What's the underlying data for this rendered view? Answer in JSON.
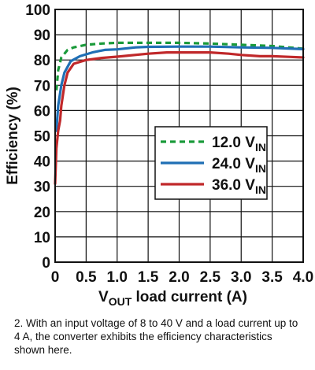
{
  "chart_data": {
    "type": "line",
    "ylabel": "Efficiency (%)",
    "xlabel": "V",
    "xlabel_sub": "OUT",
    "xlabel_rest": " load current (A)",
    "xlim": [
      0,
      4.0
    ],
    "ylim": [
      0,
      100
    ],
    "x_ticks": [
      "0",
      "0.5",
      "1.0",
      "1.5",
      "2.0",
      "2.5",
      "3.0",
      "3.5",
      "4.0"
    ],
    "y_ticks": [
      "0",
      "10",
      "20",
      "30",
      "40",
      "50",
      "60",
      "70",
      "80",
      "90",
      "100"
    ],
    "grid": true,
    "legend_position": "center-right",
    "series": [
      {
        "name": "12.0 V",
        "name_sub": "IN",
        "color": "#1a9a3a",
        "dash": true,
        "x": [
          0.02,
          0.05,
          0.1,
          0.2,
          0.3,
          0.5,
          0.75,
          1.0,
          1.5,
          2.0,
          2.5,
          3.0,
          3.5,
          4.0
        ],
        "y": [
          68,
          76,
          81,
          84,
          85,
          86,
          86.5,
          86.8,
          86.8,
          86.8,
          86.5,
          86,
          85.5,
          84.5
        ]
      },
      {
        "name": "24.0 V",
        "name_sub": "IN",
        "color": "#1f6fb5",
        "dash": false,
        "x": [
          0.02,
          0.05,
          0.1,
          0.15,
          0.25,
          0.4,
          0.6,
          0.8,
          1.0,
          1.3,
          1.5,
          2.0,
          2.5,
          3.0,
          3.5,
          4.0
        ],
        "y": [
          52,
          62,
          70,
          75,
          79.5,
          81.5,
          83,
          84,
          84.2,
          85,
          85.2,
          85.3,
          85.3,
          85,
          84.8,
          84.3
        ]
      },
      {
        "name": "36.0 V",
        "name_sub": "IN",
        "color": "#c0282a",
        "dash": false,
        "x": [
          0.0,
          0.02,
          0.05,
          0.08,
          0.1,
          0.15,
          0.2,
          0.3,
          0.5,
          0.75,
          1.0,
          1.5,
          1.8,
          2.0,
          2.5,
          2.8,
          3.0,
          3.3,
          3.5,
          3.8,
          4.0
        ],
        "y": [
          31,
          45,
          52,
          56,
          62,
          70,
          75,
          78.5,
          80,
          80.8,
          81.3,
          82.5,
          83,
          83,
          83,
          82.5,
          82,
          81.5,
          81.5,
          81.2,
          81
        ]
      }
    ]
  },
  "caption": "2. With an input voltage of 8 to 40 V and a load current up to 4 A, the converter exhibits the efficiency characteristics shown here."
}
